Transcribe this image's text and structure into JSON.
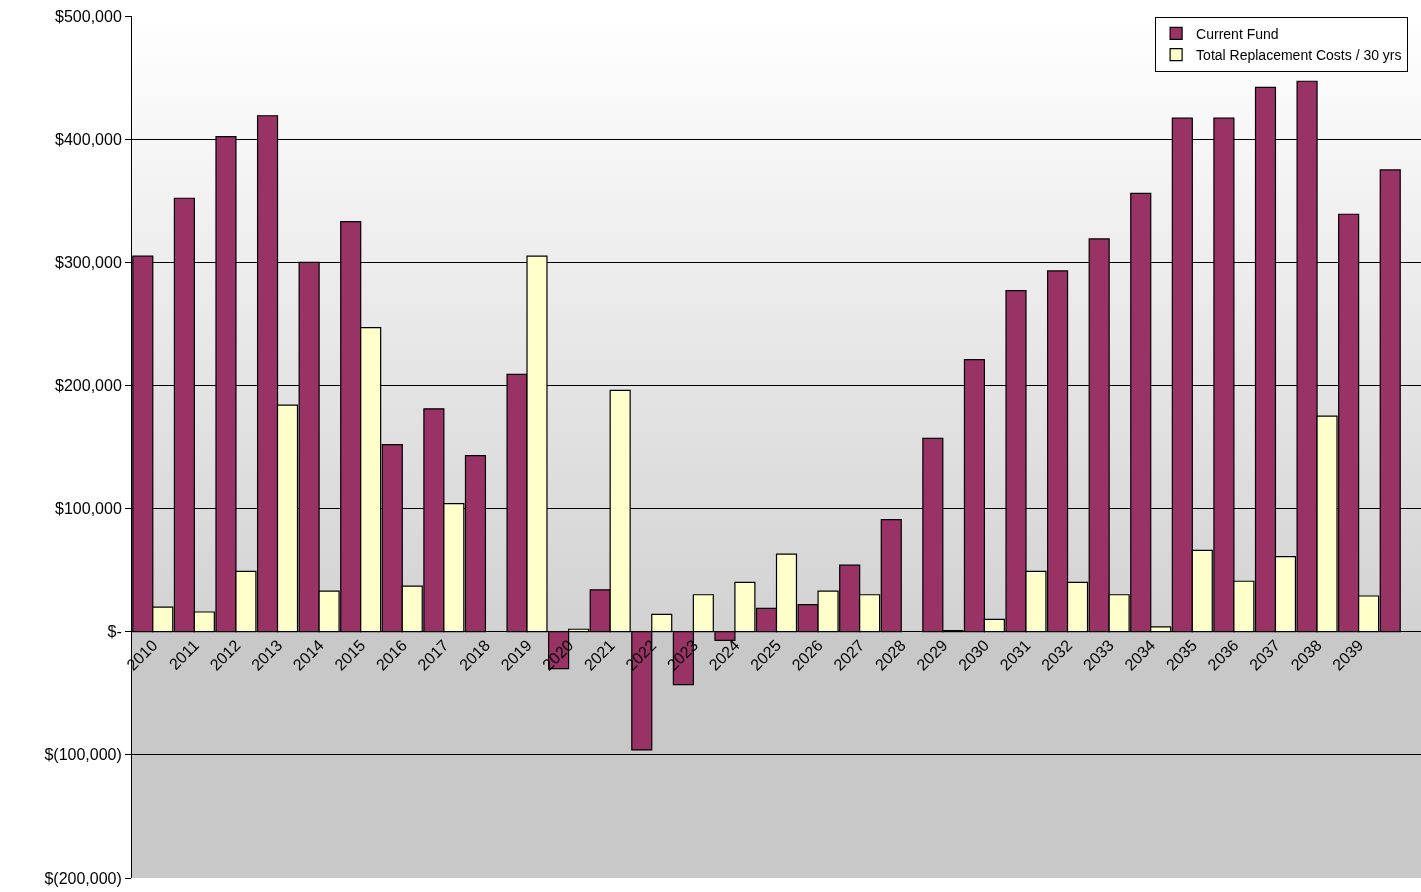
{
  "chart_data": {
    "type": "bar",
    "categories": [
      "2010",
      "2011",
      "2012",
      "2013",
      "2014",
      "2015",
      "2016",
      "2017",
      "2018",
      "2019",
      "2020",
      "2021",
      "2022",
      "2023",
      "2024",
      "2025",
      "2026",
      "2027",
      "2028",
      "2029",
      "2030",
      "2031",
      "2032",
      "2033",
      "2034",
      "2035",
      "2036",
      "2037",
      "2038",
      "2039",
      null
    ],
    "series": [
      {
        "name": "Current Fund",
        "color": "#993366",
        "values": [
          305000,
          352000,
          402000,
          419000,
          300000,
          333000,
          152000,
          181000,
          143000,
          209000,
          -30000,
          34000,
          -96000,
          -43000,
          -7000,
          19000,
          22000,
          54000,
          91000,
          157000,
          221000,
          277000,
          293000,
          319000,
          356000,
          417000,
          417000,
          442000,
          447000,
          339000,
          375000
        ]
      },
      {
        "name": "Total Replacement Costs / 30 yrs",
        "color": "#ffffcc",
        "values": [
          20000,
          16000,
          49000,
          184000,
          33000,
          247000,
          37000,
          104000,
          null,
          305000,
          2000,
          196000,
          14000,
          30000,
          40000,
          63000,
          33000,
          30000,
          null,
          1000,
          10000,
          49000,
          40000,
          30000,
          4000,
          66000,
          41000,
          61000,
          175000,
          29000,
          null
        ]
      }
    ],
    "ylim": [
      -200000,
      500000
    ],
    "yticks": [
      {
        "value": -200000,
        "label": "$(200,000)"
      },
      {
        "value": -100000,
        "label": "$(100,000)"
      },
      {
        "value": 0,
        "label": "$-"
      },
      {
        "value": 100000,
        "label": "$100,000"
      },
      {
        "value": 200000,
        "label": "$200,000"
      },
      {
        "value": 300000,
        "label": "$300,000"
      },
      {
        "value": 400000,
        "label": "$400,000"
      },
      {
        "value": 500000,
        "label": "$500,000"
      }
    ],
    "grid": "y",
    "legend": "top right"
  }
}
